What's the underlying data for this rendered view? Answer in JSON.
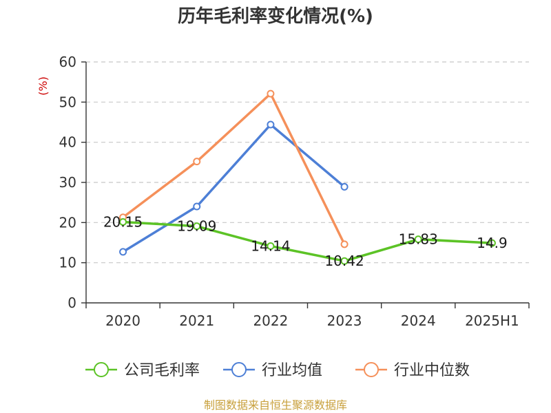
{
  "chart_data": {
    "type": "line",
    "title": "历年毛利率变化情况(%)",
    "ylabel": "(%)",
    "xlabel": "",
    "categories": [
      "2020",
      "2021",
      "2022",
      "2023",
      "2024",
      "2025H1"
    ],
    "ylim": [
      0,
      60
    ],
    "yticks": [
      0,
      10,
      20,
      30,
      40,
      50,
      60
    ],
    "grid": true,
    "legend_position": "bottom",
    "series": [
      {
        "name": "公司毛利率",
        "color": "#5cc326",
        "values": [
          20.15,
          19.09,
          14.14,
          10.42,
          15.83,
          14.9
        ],
        "labels": [
          "20.15",
          "19.09",
          "14.14",
          "10.42",
          "15.83",
          "14.9"
        ]
      },
      {
        "name": "行业均值",
        "color": "#4d7fd6",
        "values": [
          12.7,
          24.0,
          44.4,
          28.9,
          null,
          null
        ]
      },
      {
        "name": "行业中位数",
        "color": "#f5905a",
        "values": [
          21.3,
          35.2,
          52.1,
          14.6,
          null,
          null
        ]
      }
    ]
  },
  "source": "制图数据来自恒生聚源数据库"
}
